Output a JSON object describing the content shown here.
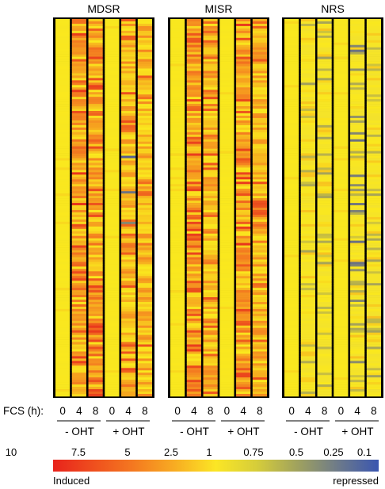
{
  "chart_data": {
    "type": "heatmap",
    "panels": [
      {
        "title": "MDSR",
        "columns": [
          {
            "condition": "- OHT",
            "fcs_h": "0",
            "level": "baseline"
          },
          {
            "condition": "- OHT",
            "fcs_h": "4",
            "level": "strongly induced"
          },
          {
            "condition": "- OHT",
            "fcs_h": "8",
            "level": "strongly induced"
          },
          {
            "condition": "+ OHT",
            "fcs_h": "0",
            "level": "baseline"
          },
          {
            "condition": "+ OHT",
            "fcs_h": "4",
            "level": "induced, some repressed at bottom"
          },
          {
            "condition": "+ OHT",
            "fcs_h": "8",
            "level": "induced"
          }
        ]
      },
      {
        "title": "MISR",
        "columns": [
          {
            "condition": "- OHT",
            "fcs_h": "0",
            "level": "baseline"
          },
          {
            "condition": "- OHT",
            "fcs_h": "4",
            "level": "strongly induced"
          },
          {
            "condition": "- OHT",
            "fcs_h": "8",
            "level": "induced"
          },
          {
            "condition": "+ OHT",
            "fcs_h": "0",
            "level": "baseline"
          },
          {
            "condition": "+ OHT",
            "fcs_h": "4",
            "level": "strongly induced"
          },
          {
            "condition": "+ OHT",
            "fcs_h": "8",
            "level": "induced"
          }
        ]
      },
      {
        "title": "NRS",
        "columns": [
          {
            "condition": "- OHT",
            "fcs_h": "0",
            "level": "baseline"
          },
          {
            "condition": "- OHT",
            "fcs_h": "4",
            "level": "mixed"
          },
          {
            "condition": "- OHT",
            "fcs_h": "8",
            "level": "mixed"
          },
          {
            "condition": "+ OHT",
            "fcs_h": "0",
            "level": "baseline"
          },
          {
            "condition": "+ OHT",
            "fcs_h": "4",
            "level": "mixed, some repressed"
          },
          {
            "condition": "+ OHT",
            "fcs_h": "8",
            "level": "mixed"
          }
        ]
      }
    ],
    "row_label": "FCS (h):",
    "time_points": [
      "0",
      "4",
      "8"
    ],
    "conditions": [
      "- OHT",
      "+ OHT"
    ],
    "color_scale": {
      "ticks": [
        "10",
        "7.5",
        "5",
        "2.5",
        "1",
        "0.75",
        "0.5",
        "0.25",
        "0.1"
      ],
      "colors": [
        "#e8231c",
        "#ef4f1e",
        "#f47a20",
        "#f8ad22",
        "#fbe625",
        "#d6cd3a",
        "#a0a25e",
        "#6d7a8a",
        "#3a56b0"
      ],
      "low_label": "Induced",
      "high_label": "repressed"
    },
    "legend": "bottom"
  }
}
